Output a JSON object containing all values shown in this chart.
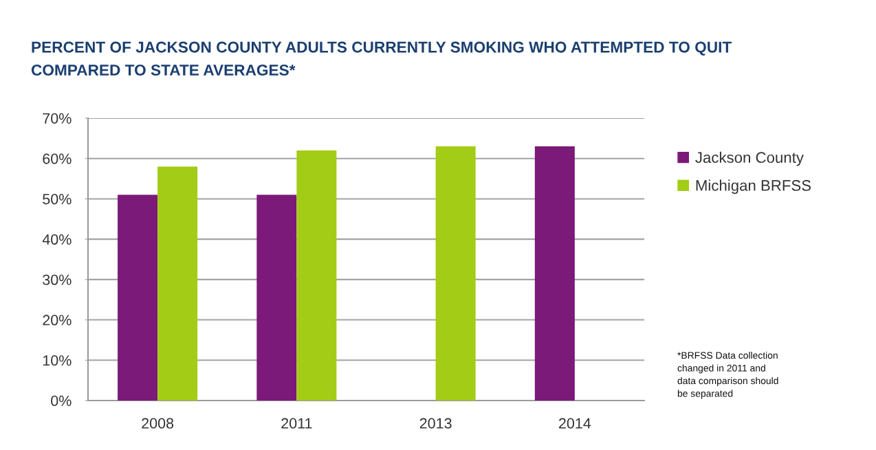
{
  "chart_data": {
    "type": "bar",
    "title": "PERCENT OF JACKSON COUNTY ADULTS CURRENTLY SMOKING WHO ATTEMPTED TO QUIT\nCOMPARED TO STATE AVERAGES*",
    "categories": [
      "2008",
      "2011",
      "2013",
      "2014"
    ],
    "series": [
      {
        "name": "Jackson County",
        "color": "#7b1a78",
        "values": [
          51,
          51,
          null,
          63
        ]
      },
      {
        "name": "Michigan BRFSS",
        "color": "#a3cc16",
        "values": [
          58,
          62,
          63,
          null
        ]
      }
    ],
    "ylim": [
      0,
      70
    ],
    "yticks": [
      {
        "value": 0,
        "label": "0%"
      },
      {
        "value": 10,
        "label": "10%"
      },
      {
        "value": 20,
        "label": "20%"
      },
      {
        "value": 30,
        "label": "30%"
      },
      {
        "value": 40,
        "label": "40%"
      },
      {
        "value": 50,
        "label": "50%"
      },
      {
        "value": 60,
        "label": "60%"
      },
      {
        "value": 70,
        "label": "70%"
      }
    ],
    "grid": "y",
    "legend": "top right",
    "annotations": [
      "*BRFSS Data collection\nchanged in 2011 and\ndata comparison should\nbe separated"
    ]
  }
}
